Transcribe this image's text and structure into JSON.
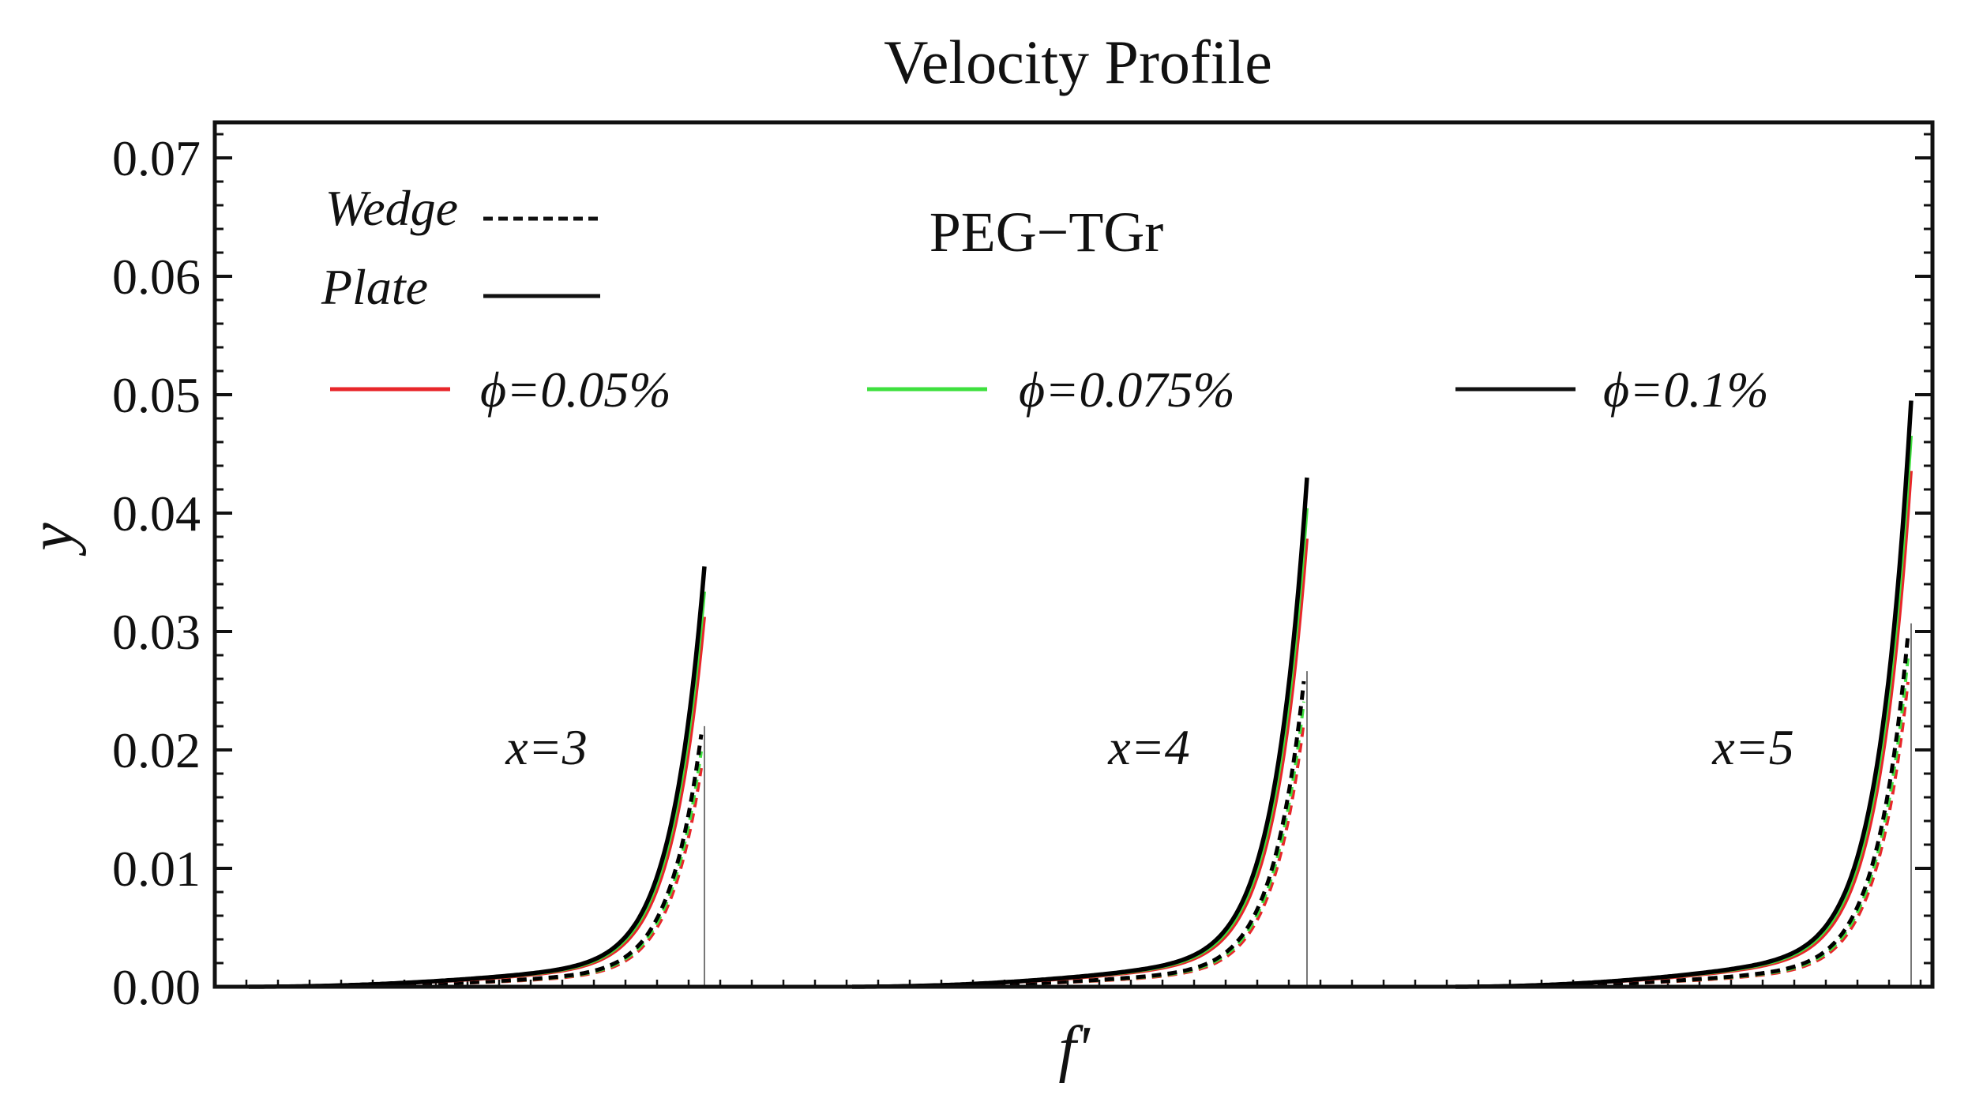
{
  "chart_data": {
    "type": "line",
    "title": "Velocity Profile",
    "xlabel": "f'",
    "ylabel": "y",
    "ylim": [
      0,
      0.073
    ],
    "yticks": [
      "0.00",
      "0.01",
      "0.02",
      "0.03",
      "0.04",
      "0.05",
      "0.06",
      "0.07"
    ],
    "annotation": "PEG−TGr",
    "line_style_legend": [
      {
        "label": "Wedge",
        "style": "dashed"
      },
      {
        "label": "Plate",
        "style": "solid"
      }
    ],
    "phi_legend": [
      {
        "label": "ϕ=0.05%",
        "color": "#e8262a"
      },
      {
        "label": "ϕ=0.075%",
        "color": "#3ee03e"
      },
      {
        "label": "ϕ=0.1%",
        "color": "#000000"
      }
    ],
    "panels": [
      {
        "label": "x=3",
        "peak_y": 0.0355
      },
      {
        "label": "x=4",
        "peak_y": 0.043
      },
      {
        "label": "x=5",
        "peak_y": 0.0495
      }
    ],
    "series_scale": {
      "plate": [
        0.88,
        0.94,
        1.0
      ],
      "wedge": [
        0.52,
        0.56,
        0.6
      ]
    }
  }
}
